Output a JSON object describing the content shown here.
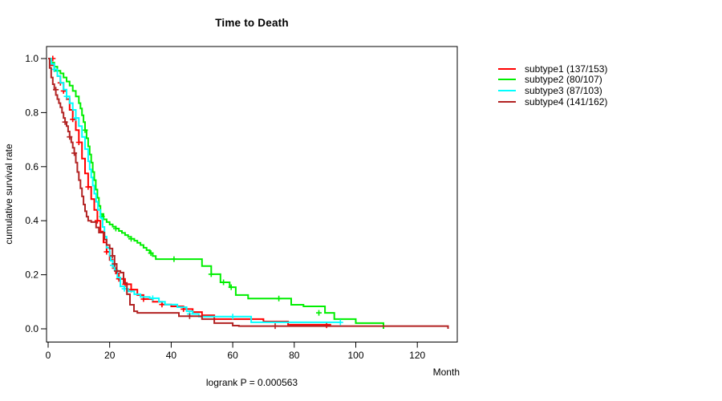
{
  "chart_data": {
    "type": "line",
    "variant": "kaplan-meier-step",
    "title": "Time to Death",
    "xlabel": "Month",
    "ylabel": "cumulative survival rate",
    "annotation": "logrank P = 0.000563",
    "grid": false,
    "legend_position": "right-outside",
    "xlim": [
      0,
      133
    ],
    "ylim": [
      0,
      1.0
    ],
    "x_ticks": [
      0,
      20,
      40,
      60,
      80,
      100,
      120
    ],
    "x_tick_labels": [
      "0",
      "20",
      "40",
      "60",
      "80",
      "100",
      "120"
    ],
    "y_ticks": [
      0.0,
      0.2,
      0.4,
      0.6,
      0.8,
      1.0
    ],
    "y_tick_labels": [
      "0.0",
      "0.2",
      "0.4",
      "0.6",
      "0.8",
      "1.0"
    ],
    "axis_color": "#000000",
    "series": [
      {
        "name": "subtype1",
        "legend_label": "subtype1 (137/153)",
        "color": "#ff0000",
        "points": [
          [
            0,
            1.0
          ],
          [
            1,
            0.975
          ],
          [
            2,
            0.955
          ],
          [
            3,
            0.935
          ],
          [
            4,
            0.91
          ],
          [
            5,
            0.88
          ],
          [
            6,
            0.85
          ],
          [
            7,
            0.81
          ],
          [
            8,
            0.775
          ],
          [
            9,
            0.735
          ],
          [
            10,
            0.69
          ],
          [
            11,
            0.63
          ],
          [
            12,
            0.575
          ],
          [
            13,
            0.525
          ],
          [
            14,
            0.48
          ],
          [
            15,
            0.44
          ],
          [
            16,
            0.4
          ],
          [
            17,
            0.36
          ],
          [
            18,
            0.32
          ],
          [
            19,
            0.285
          ],
          [
            20,
            0.255
          ],
          [
            21,
            0.225
          ],
          [
            22,
            0.205
          ],
          [
            23,
            0.185
          ],
          [
            25,
            0.165
          ],
          [
            27,
            0.145
          ],
          [
            29,
            0.125
          ],
          [
            31,
            0.11
          ],
          [
            34,
            0.1
          ],
          [
            37,
            0.09
          ],
          [
            40,
            0.083
          ],
          [
            44,
            0.073
          ],
          [
            47,
            0.062
          ],
          [
            50,
            0.05
          ],
          [
            54,
            0.036
          ],
          [
            70,
            0.027
          ],
          [
            78,
            0.015
          ],
          [
            92,
            0.015
          ]
        ],
        "censor_marks": [
          [
            1.5,
            1.0
          ],
          [
            4,
            0.91
          ],
          [
            5,
            0.88
          ],
          [
            8,
            0.775
          ],
          [
            10,
            0.69
          ],
          [
            13,
            0.525
          ],
          [
            16,
            0.4
          ],
          [
            19,
            0.285
          ],
          [
            23,
            0.185
          ],
          [
            25,
            0.165
          ],
          [
            27,
            0.145
          ],
          [
            31,
            0.11
          ],
          [
            37,
            0.09
          ],
          [
            44,
            0.073
          ],
          [
            90.5,
            0.013
          ]
        ]
      },
      {
        "name": "subtype2",
        "legend_label": "subtype2 (80/107)",
        "color": "#00ee00",
        "points": [
          [
            0,
            1.0
          ],
          [
            1,
            0.985
          ],
          [
            2,
            0.97
          ],
          [
            3,
            0.955
          ],
          [
            4,
            0.945
          ],
          [
            5,
            0.93
          ],
          [
            6,
            0.915
          ],
          [
            7,
            0.9
          ],
          [
            8,
            0.88
          ],
          [
            9,
            0.86
          ],
          [
            10,
            0.835
          ],
          [
            10.5,
            0.815
          ],
          [
            11,
            0.79
          ],
          [
            11.5,
            0.765
          ],
          [
            12,
            0.735
          ],
          [
            12.5,
            0.705
          ],
          [
            13,
            0.675
          ],
          [
            13.5,
            0.645
          ],
          [
            14,
            0.615
          ],
          [
            14.5,
            0.58
          ],
          [
            15,
            0.55
          ],
          [
            15.5,
            0.515
          ],
          [
            16,
            0.485
          ],
          [
            16.5,
            0.455
          ],
          [
            17,
            0.425
          ],
          [
            18,
            0.405
          ],
          [
            19,
            0.395
          ],
          [
            20,
            0.386
          ],
          [
            21,
            0.378
          ],
          [
            22,
            0.371
          ],
          [
            23,
            0.362
          ],
          [
            24,
            0.355
          ],
          [
            25,
            0.347
          ],
          [
            26,
            0.34
          ],
          [
            27,
            0.333
          ],
          [
            28,
            0.326
          ],
          [
            29,
            0.318
          ],
          [
            30,
            0.31
          ],
          [
            31,
            0.3
          ],
          [
            32,
            0.291
          ],
          [
            33,
            0.28
          ],
          [
            34,
            0.269
          ],
          [
            35,
            0.258
          ],
          [
            50,
            0.232
          ],
          [
            53,
            0.202
          ],
          [
            56,
            0.172
          ],
          [
            59,
            0.154
          ],
          [
            61,
            0.125
          ],
          [
            65,
            0.112
          ],
          [
            79,
            0.089
          ],
          [
            83,
            0.083
          ],
          [
            90,
            0.059
          ],
          [
            93,
            0.036
          ],
          [
            100,
            0.021
          ],
          [
            109,
            0.0
          ]
        ],
        "censor_marks": [
          [
            3,
            0.955
          ],
          [
            12,
            0.735
          ],
          [
            17.5,
            0.415
          ],
          [
            22,
            0.371
          ],
          [
            27,
            0.333
          ],
          [
            33.4,
            0.28
          ],
          [
            40.9,
            0.258
          ],
          [
            53,
            0.202
          ],
          [
            57,
            0.172
          ],
          [
            59.5,
            0.154
          ],
          [
            75,
            0.112
          ],
          [
            88,
            0.059
          ]
        ]
      },
      {
        "name": "subtype3",
        "legend_label": "subtype3 (87/103)",
        "color": "#00ffff",
        "points": [
          [
            0,
            1.0
          ],
          [
            1,
            0.98
          ],
          [
            2,
            0.96
          ],
          [
            3,
            0.935
          ],
          [
            4,
            0.91
          ],
          [
            5,
            0.885
          ],
          [
            6,
            0.86
          ],
          [
            7,
            0.835
          ],
          [
            8,
            0.81
          ],
          [
            9,
            0.78
          ],
          [
            10,
            0.75
          ],
          [
            11,
            0.71
          ],
          [
            12,
            0.665
          ],
          [
            13,
            0.62
          ],
          [
            13.5,
            0.59
          ],
          [
            14,
            0.56
          ],
          [
            14.5,
            0.53
          ],
          [
            15,
            0.5
          ],
          [
            15.6,
            0.47
          ],
          [
            16.2,
            0.44
          ],
          [
            17,
            0.41
          ],
          [
            17.7,
            0.377
          ],
          [
            18.3,
            0.341
          ],
          [
            19,
            0.3
          ],
          [
            20,
            0.27
          ],
          [
            20.3,
            0.252
          ],
          [
            21,
            0.235
          ],
          [
            21.6,
            0.217
          ],
          [
            22.5,
            0.19
          ],
          [
            23.5,
            0.157
          ],
          [
            24.8,
            0.148
          ],
          [
            26,
            0.139
          ],
          [
            28,
            0.128
          ],
          [
            30,
            0.118
          ],
          [
            33,
            0.113
          ],
          [
            36,
            0.1
          ],
          [
            38,
            0.09
          ],
          [
            42,
            0.08
          ],
          [
            45,
            0.065
          ],
          [
            47,
            0.055
          ],
          [
            49,
            0.045
          ],
          [
            66,
            0.024
          ],
          [
            95,
            0.024
          ]
        ],
        "censor_marks": [
          [
            2,
            0.96
          ],
          [
            6,
            0.86
          ],
          [
            9,
            0.78
          ],
          [
            21,
            0.235
          ],
          [
            24.8,
            0.148
          ],
          [
            34,
            0.113
          ],
          [
            46,
            0.055
          ],
          [
            60,
            0.045
          ],
          [
            95,
            0.024
          ]
        ]
      },
      {
        "name": "subtype4",
        "legend_label": "subtype4 (141/162)",
        "color": "#b22222",
        "points": [
          [
            0,
            1.0
          ],
          [
            0.5,
            0.965
          ],
          [
            1,
            0.93
          ],
          [
            1.5,
            0.905
          ],
          [
            2,
            0.885
          ],
          [
            2.5,
            0.865
          ],
          [
            3,
            0.85
          ],
          [
            3.5,
            0.835
          ],
          [
            4,
            0.82
          ],
          [
            4.5,
            0.8
          ],
          [
            5,
            0.78
          ],
          [
            5.5,
            0.765
          ],
          [
            6,
            0.75
          ],
          [
            6.5,
            0.73
          ],
          [
            7,
            0.71
          ],
          [
            7.5,
            0.69
          ],
          [
            8,
            0.67
          ],
          [
            8.5,
            0.65
          ],
          [
            9,
            0.615
          ],
          [
            9.5,
            0.58
          ],
          [
            10,
            0.55
          ],
          [
            10.5,
            0.52
          ],
          [
            11,
            0.49
          ],
          [
            11.5,
            0.46
          ],
          [
            12,
            0.435
          ],
          [
            12.5,
            0.415
          ],
          [
            13,
            0.4
          ],
          [
            14,
            0.395
          ],
          [
            15.6,
            0.375
          ],
          [
            16.5,
            0.356
          ],
          [
            18.3,
            0.33
          ],
          [
            19,
            0.31
          ],
          [
            20,
            0.297
          ],
          [
            20.9,
            0.27
          ],
          [
            21.6,
            0.24
          ],
          [
            22.3,
            0.214
          ],
          [
            23.5,
            0.208
          ],
          [
            24.5,
            0.17
          ],
          [
            25.6,
            0.128
          ],
          [
            26.6,
            0.089
          ],
          [
            27.9,
            0.065
          ],
          [
            29,
            0.059
          ],
          [
            42.5,
            0.047
          ],
          [
            50,
            0.036
          ],
          [
            54,
            0.021
          ],
          [
            60,
            0.012
          ],
          [
            62,
            0.01
          ],
          [
            130,
            0.0
          ]
        ],
        "censor_marks": [
          [
            2.5,
            0.885
          ],
          [
            5.5,
            0.765
          ],
          [
            7,
            0.71
          ],
          [
            8.5,
            0.65
          ],
          [
            20.9,
            0.27
          ],
          [
            21.6,
            0.24
          ],
          [
            22.3,
            0.214
          ],
          [
            46,
            0.047
          ],
          [
            73.8,
            0.01
          ]
        ]
      }
    ]
  }
}
